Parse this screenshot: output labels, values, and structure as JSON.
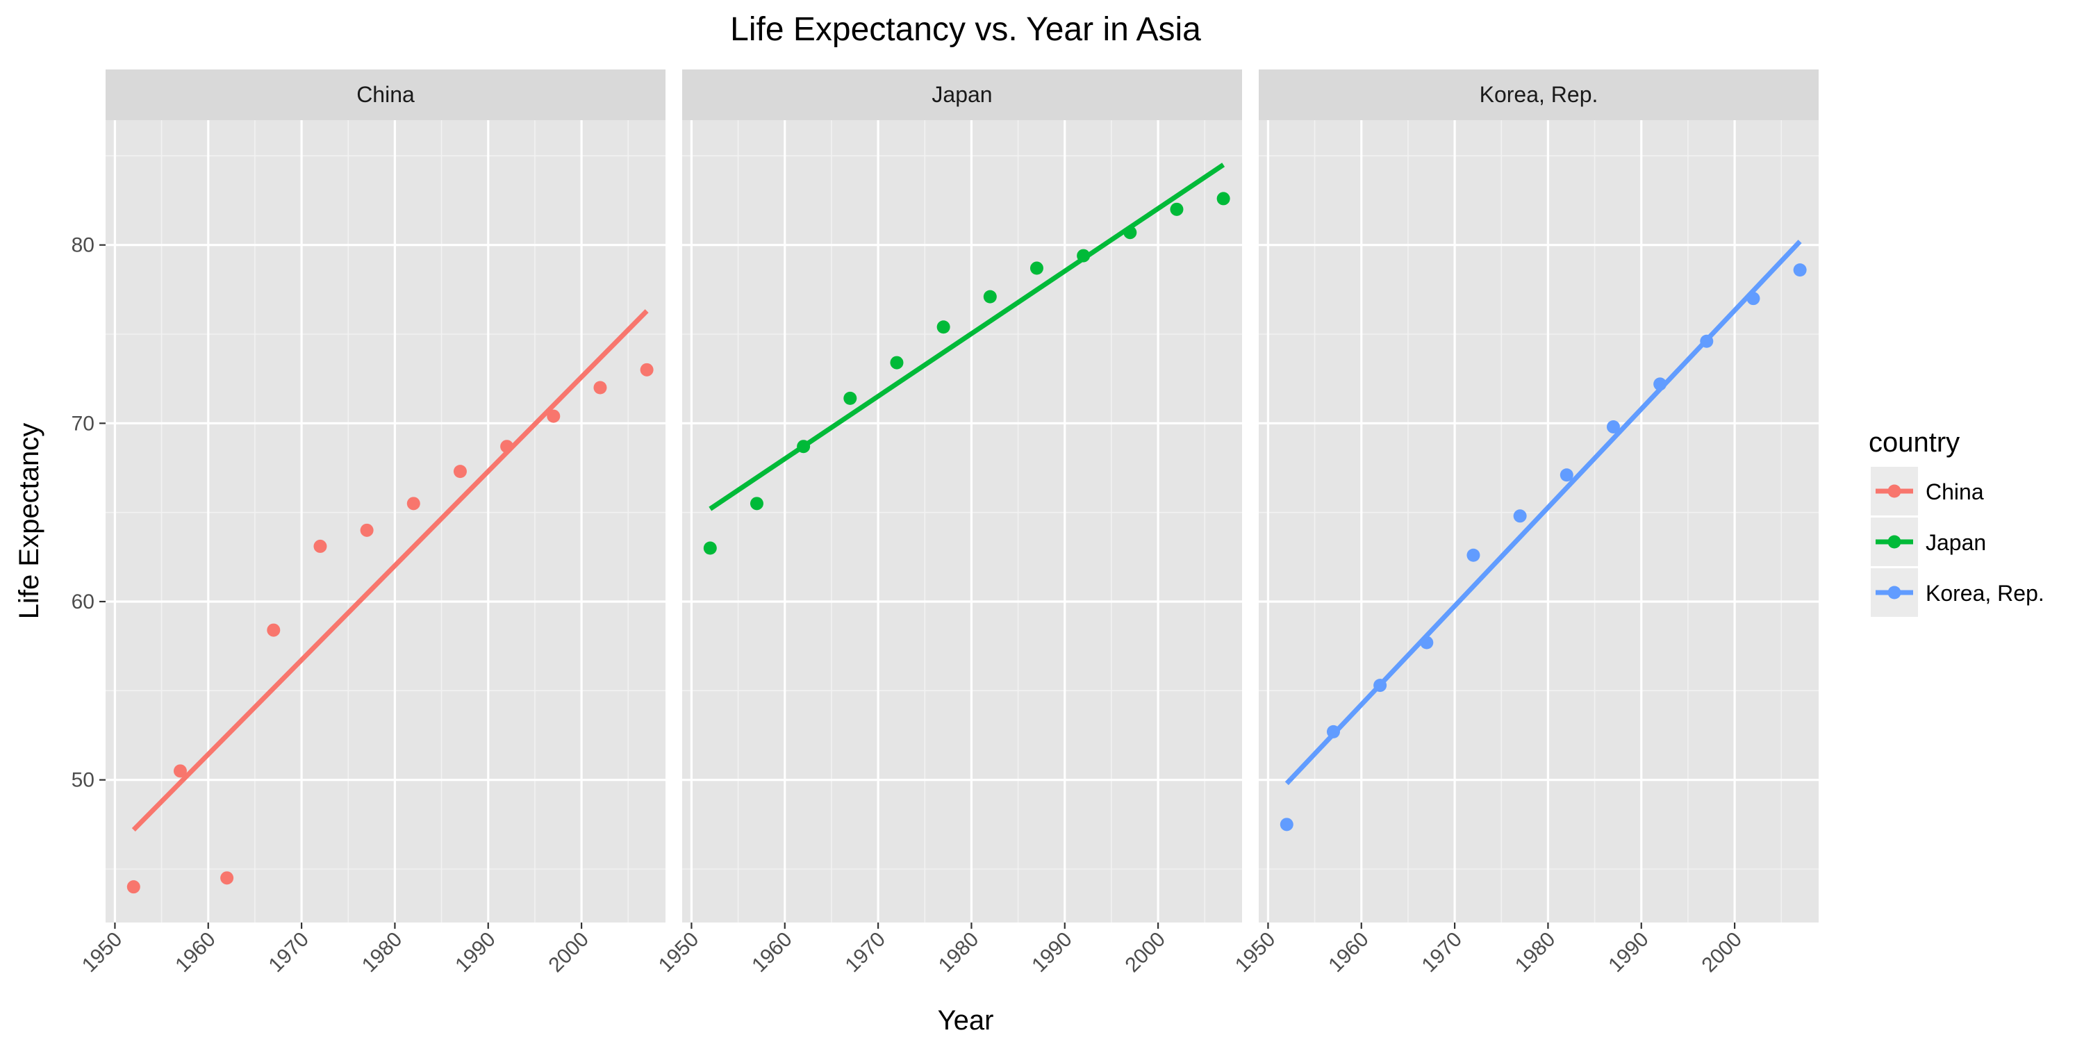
{
  "chart_data": {
    "type": "scatter",
    "title": "Life Expectancy vs. Year in Asia",
    "xlabel": "Year",
    "ylabel": "Life Expectancy",
    "xlim": [
      1949,
      2009
    ],
    "ylim": [
      42,
      87
    ],
    "x_ticks": [
      "1950",
      "1960",
      "1970",
      "1980",
      "1990",
      "2000"
    ],
    "y_ticks": [
      "50",
      "60",
      "70",
      "80"
    ],
    "grid": true,
    "legend": {
      "title": "country",
      "position": "right"
    },
    "x": [
      1952,
      1957,
      1962,
      1967,
      1972,
      1977,
      1982,
      1987,
      1992,
      1997,
      2002,
      2007
    ],
    "series": [
      {
        "name": "China",
        "color": "#F8766D",
        "values": [
          44.0,
          50.5,
          44.5,
          58.4,
          63.1,
          64.0,
          65.5,
          67.3,
          68.7,
          70.4,
          72.0,
          73.0
        ],
        "trend": [
          [
            1952,
            47.2
          ],
          [
            2007,
            76.3
          ]
        ]
      },
      {
        "name": "Japan",
        "color": "#00BA38",
        "values": [
          63.0,
          65.5,
          68.7,
          71.4,
          73.4,
          75.4,
          77.1,
          78.7,
          79.4,
          80.7,
          82.0,
          82.6
        ],
        "trend": [
          [
            1952,
            65.2
          ],
          [
            2007,
            84.5
          ]
        ]
      },
      {
        "name": "Korea, Rep.",
        "color": "#619CFF",
        "values": [
          47.5,
          52.7,
          55.3,
          57.7,
          62.6,
          64.8,
          67.1,
          69.8,
          72.2,
          74.6,
          77.0,
          78.6
        ],
        "trend": [
          [
            1952,
            49.8
          ],
          [
            2007,
            80.2
          ]
        ]
      }
    ]
  }
}
